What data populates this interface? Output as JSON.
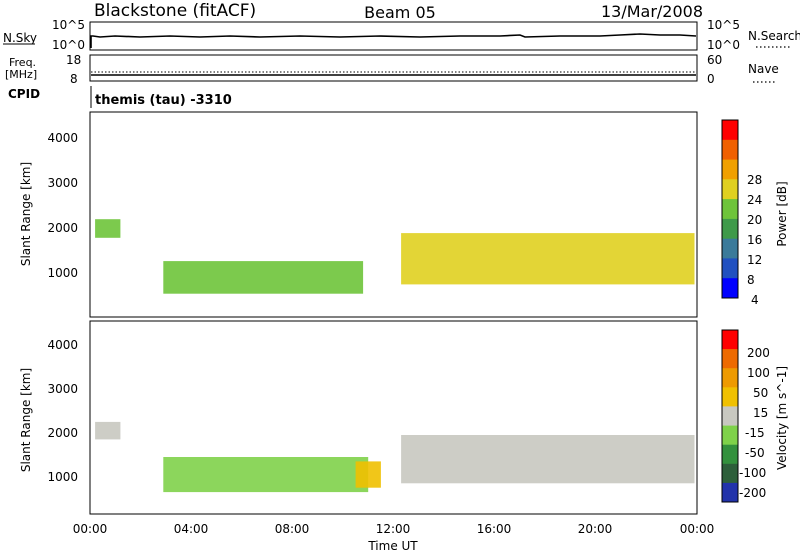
{
  "header": {
    "station": "Blackstone (fitACF)",
    "beam": "Beam 05",
    "date": "13/Mar/2008"
  },
  "top_panels": {
    "nsky_label": "N.Sky",
    "nsky_ticks": [
      "10^5",
      "10^0"
    ],
    "nsearch_label": "N.Search",
    "nsearch_ticks": [
      "10^5",
      "10^0"
    ],
    "freq_label": "Freq.",
    "freq_unit": "[MHz]",
    "freq_ticks": [
      "18",
      "8"
    ],
    "nave_label": "Nave",
    "nave_ticks": [
      "60",
      "0"
    ],
    "cpid_label": "CPID",
    "cpid_text": "themis (tau) -3310"
  },
  "colors": {
    "power_scale": [
      "#0000ff",
      "#2050c0",
      "#3a7a9a",
      "#3f9a4a",
      "#6ec43a",
      "#e0d020",
      "#f0a000",
      "#f06000",
      "#ff0000"
    ],
    "velocity_scale": [
      "#2233aa",
      "#2d5f3a",
      "#33913d",
      "#7fd24a",
      "#c8c8c0",
      "#f0c000",
      "#ee9a00",
      "#ee6a00",
      "#ff0000"
    ],
    "scatter_gray": "#c8c8c0"
  },
  "chart_data": [
    {
      "type": "heatmap",
      "title": "Power",
      "ylabel": "Slant Range [km]",
      "xlabel": "Time UT",
      "x_range_hours": [
        0,
        24
      ],
      "ylim": [
        200,
        4600
      ],
      "y_ticks": [
        "4000",
        "3000",
        "2000",
        "1000"
      ],
      "x_ticks": [
        "00:00",
        "04:00",
        "08:00",
        "12:00",
        "16:00",
        "20:00",
        "00:00"
      ],
      "colorbar": {
        "label": "Power [dB]",
        "ticks": [
          "28",
          "24",
          "20",
          "16",
          "12",
          "8",
          "4"
        ],
        "range": [
          0,
          30
        ]
      },
      "regions": [
        {
          "t_start": 0.2,
          "t_end": 1.2,
          "range_low": 1900,
          "range_high": 2300,
          "value": 16
        },
        {
          "t_start": 2.9,
          "t_end": 10.8,
          "range_low": 700,
          "range_high": 1400,
          "value": 14
        },
        {
          "t_start": 12.3,
          "t_end": 23.9,
          "range_low": 900,
          "range_high": 2000,
          "value": 18
        }
      ]
    },
    {
      "type": "heatmap",
      "title": "Velocity",
      "ylabel": "Slant Range [km]",
      "xlabel": "Time UT",
      "x_range_hours": [
        0,
        24
      ],
      "ylim": [
        200,
        4600
      ],
      "y_ticks": [
        "4000",
        "3000",
        "2000",
        "1000"
      ],
      "x_ticks": [
        "00:00",
        "04:00",
        "08:00",
        "12:00",
        "16:00",
        "20:00",
        "00:00"
      ],
      "colorbar": {
        "label": "Velocity [m s^-1]",
        "ticks": [
          "200",
          "100",
          "50",
          "15",
          "-15",
          "-50",
          "-100",
          "-200"
        ],
        "range": [
          -250,
          250
        ]
      },
      "regions": [
        {
          "t_start": 0.2,
          "t_end": 1.2,
          "range_low": 1900,
          "range_high": 2300,
          "value": 0
        },
        {
          "t_start": 2.9,
          "t_end": 11.0,
          "range_low": 700,
          "range_high": 1500,
          "value": -40
        },
        {
          "t_start": 10.5,
          "t_end": 11.5,
          "range_low": 800,
          "range_high": 1400,
          "value": 40
        },
        {
          "t_start": 12.3,
          "t_end": 23.9,
          "range_low": 900,
          "range_high": 2000,
          "value": 0
        }
      ]
    }
  ]
}
